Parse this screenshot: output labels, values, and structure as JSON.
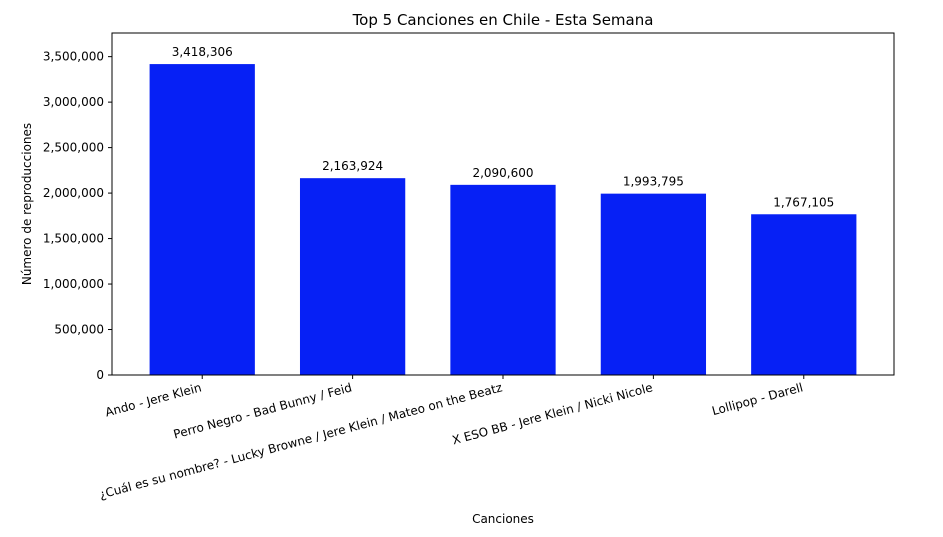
{
  "chart_data": {
    "type": "bar",
    "title": "Top 5 Canciones en Chile - Esta Semana",
    "xlabel": "Canciones",
    "ylabel": "Número de reproducciones",
    "categories": [
      "Ando - Jere Klein",
      "Perro Negro - Bad Bunny / Feid",
      "¿Cuál es su nombre? - Lucky Browne / Jere Klein / Mateo on the Beatz",
      "X ESO BB - Jere Klein / Nicki Nicole",
      "Lollipop - Darell"
    ],
    "values": [
      3418306,
      2163924,
      2090600,
      1993795,
      1767105
    ],
    "value_labels": [
      "3,418,306",
      "2,163,924",
      "2,090,600",
      "1,993,795",
      "1,767,105"
    ],
    "yticks": [
      0,
      500000,
      1000000,
      1500000,
      2000000,
      2500000,
      3000000,
      3500000
    ],
    "ytick_labels": [
      "0",
      "500,000",
      "1,000,000",
      "1,500,000",
      "2,000,000",
      "2,500,000",
      "3,000,000",
      "3,500,000"
    ],
    "ylim": [
      0,
      3760000
    ],
    "bar_color": "#0620f5",
    "grid": false,
    "legend": "none"
  }
}
